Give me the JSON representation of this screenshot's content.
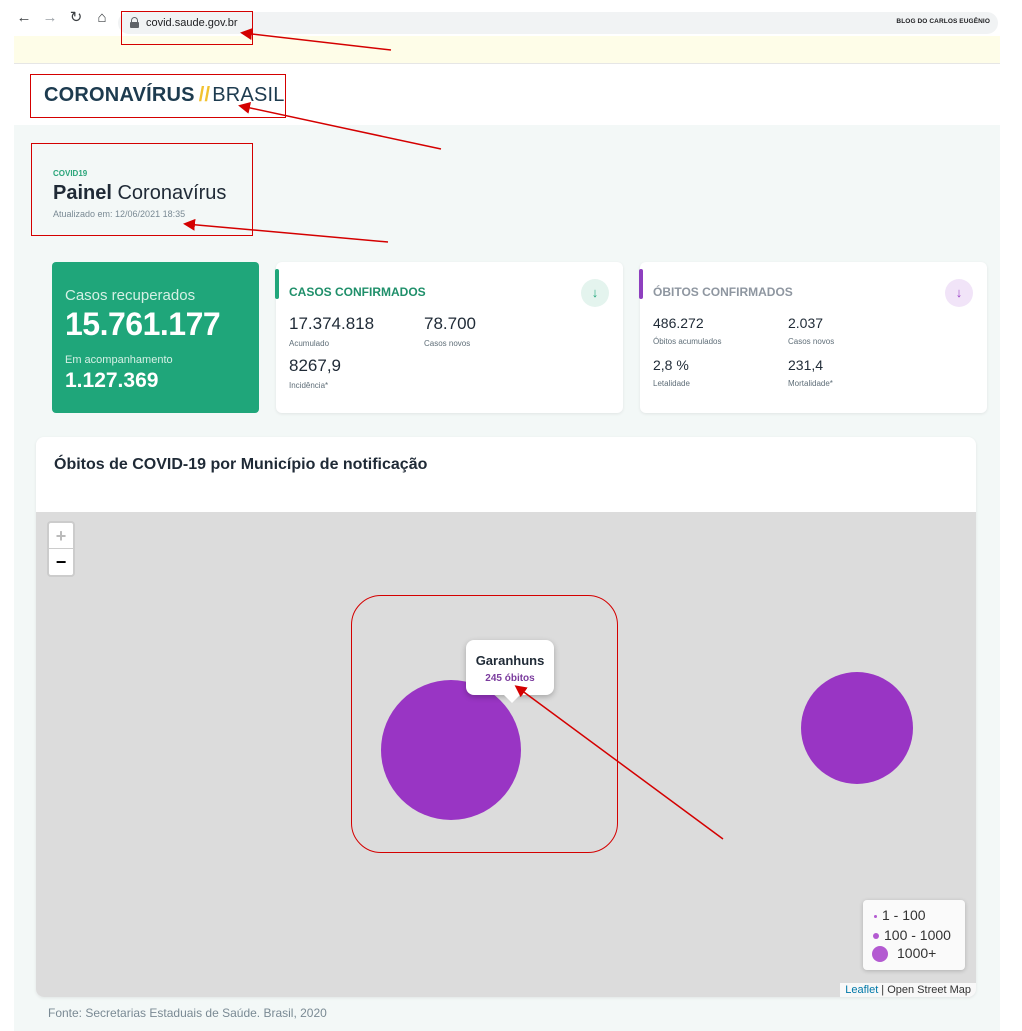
{
  "browser": {
    "url": "covid.saude.gov.br",
    "blog_label": "BLOG DO CARLOS EUGÊNIO",
    "back_icon": "arrow-left-icon",
    "forward_icon": "arrow-right-icon",
    "reload_icon": "reload-icon",
    "home_icon": "home-icon",
    "lock_icon": "lock-icon"
  },
  "header": {
    "logo_main": "CORONAVÍRUS",
    "logo_separator": "//",
    "logo_light": "BRASIL"
  },
  "panel": {
    "tag": "COVID19",
    "title_strong": "Painel",
    "title_rest": "Coronavírus",
    "updated": "Atualizado em: 12/06/2021 18:35"
  },
  "recovered": {
    "label": "Casos recuperados",
    "value": "15.761.177",
    "following_label": "Em acompanhamento",
    "following_value": "1.127.369"
  },
  "confirmed": {
    "title": "CASOS CONFIRMADOS",
    "accumulated_value": "17.374.818",
    "accumulated_label": "Acumulado",
    "new_value": "78.700",
    "new_label": "Casos novos",
    "incidence_value": "8267,9",
    "incidence_label": "Incidência*",
    "toggle_icon": "chevron-down-icon"
  },
  "deaths": {
    "title": "ÓBITOS CONFIRMADOS",
    "accumulated_value": "486.272",
    "accumulated_label": "Óbitos acumulados",
    "new_value": "2.037",
    "new_label": "Casos novos",
    "lethality_value": "2,8 %",
    "lethality_label": "Letalidade",
    "mortality_value": "231,4",
    "mortality_label": "Mortalidade*",
    "toggle_icon": "chevron-down-icon"
  },
  "map": {
    "title": "Óbitos de COVID-19 por Município de notificação",
    "zoom_in": "+",
    "zoom_out": "−",
    "popup_city": "Garanhuns",
    "popup_deaths": "245 óbitos",
    "legend": [
      "1 - 100",
      "100 - 1000",
      "1000+"
    ],
    "attribution_link": "Leaflet",
    "attribution_rest": " | Open Street Map",
    "bubble_color": "#9935c4"
  },
  "source": "Fonte: Secretarias Estaduais de Saúde. Brasil, 2020",
  "colors": {
    "accent_green": "#1fa67a",
    "accent_purple": "#8e3fbf",
    "annotation_red": "#d40000"
  }
}
